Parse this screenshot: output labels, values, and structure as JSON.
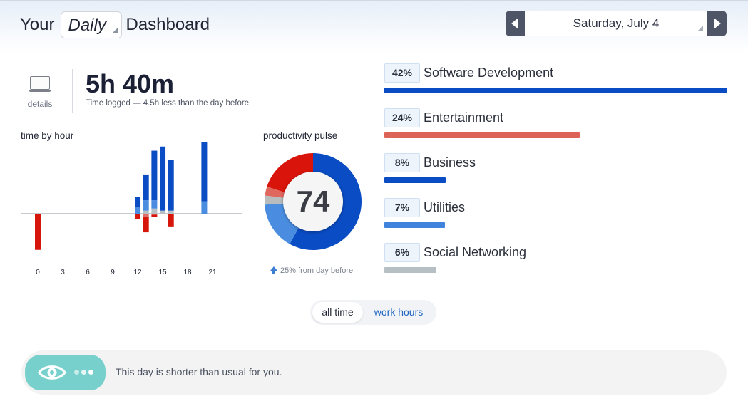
{
  "header": {
    "title_prefix": "Your",
    "period": "Daily",
    "title_suffix": "Dashboard",
    "date": "Saturday, July 4"
  },
  "summary": {
    "details_label": "details",
    "time_logged": "5h 40m",
    "time_note": "Time logged — 4.5h less than the day before"
  },
  "hour_chart": {
    "label": "time by hour",
    "chart_data": {
      "type": "bar",
      "x_ticks": [
        "0",
        "3",
        "6",
        "9",
        "12",
        "15",
        "18",
        "21"
      ],
      "hours": [
        0,
        12,
        13,
        14,
        15,
        16,
        20
      ],
      "productive_dark": [
        0,
        10,
        25,
        48,
        62,
        49,
        65
      ],
      "productive_light": [
        0,
        6,
        10,
        8,
        0,
        0,
        12
      ],
      "neutral": [
        0,
        0,
        3,
        5,
        3,
        3,
        0
      ],
      "distracting_dark": [
        35,
        5,
        15,
        2,
        0,
        13,
        0
      ],
      "distracting_light": [
        0,
        0,
        3,
        1,
        0,
        0,
        0
      ],
      "colors": {
        "productive_dark": "#0a4cc4",
        "productive_light": "#4a8de0",
        "neutral": "#b6c0c4",
        "distracting_dark": "#d6160a",
        "distracting_light": "#e06f6a"
      }
    }
  },
  "pulse": {
    "label": "productivity pulse",
    "score": "74",
    "note": "25% from day before",
    "chart_data": {
      "type": "pie",
      "values": [
        58,
        16,
        3,
        3,
        20
      ],
      "colors": [
        "#0a4cc4",
        "#4a8de0",
        "#b8bcbc",
        "#e0675e",
        "#d9140a"
      ]
    }
  },
  "categories": [
    {
      "pct": "42%",
      "name": "Software Development",
      "fraction": 1.0,
      "color": "#0a4cc4"
    },
    {
      "pct": "24%",
      "name": "Entertainment",
      "fraction": 0.571,
      "color": "#dd6356"
    },
    {
      "pct": "8%",
      "name": "Business",
      "fraction": 0.179,
      "color": "#0a4cc4"
    },
    {
      "pct": "7%",
      "name": "Utilities",
      "fraction": 0.177,
      "color": "#3f83dc"
    },
    {
      "pct": "6%",
      "name": "Social Networking",
      "fraction": 0.152,
      "color": "#b6c0c4"
    }
  ],
  "filter": {
    "all_time": "all time",
    "work_hours": "work hours"
  },
  "insight": {
    "text": "This day is shorter than usual for you."
  }
}
